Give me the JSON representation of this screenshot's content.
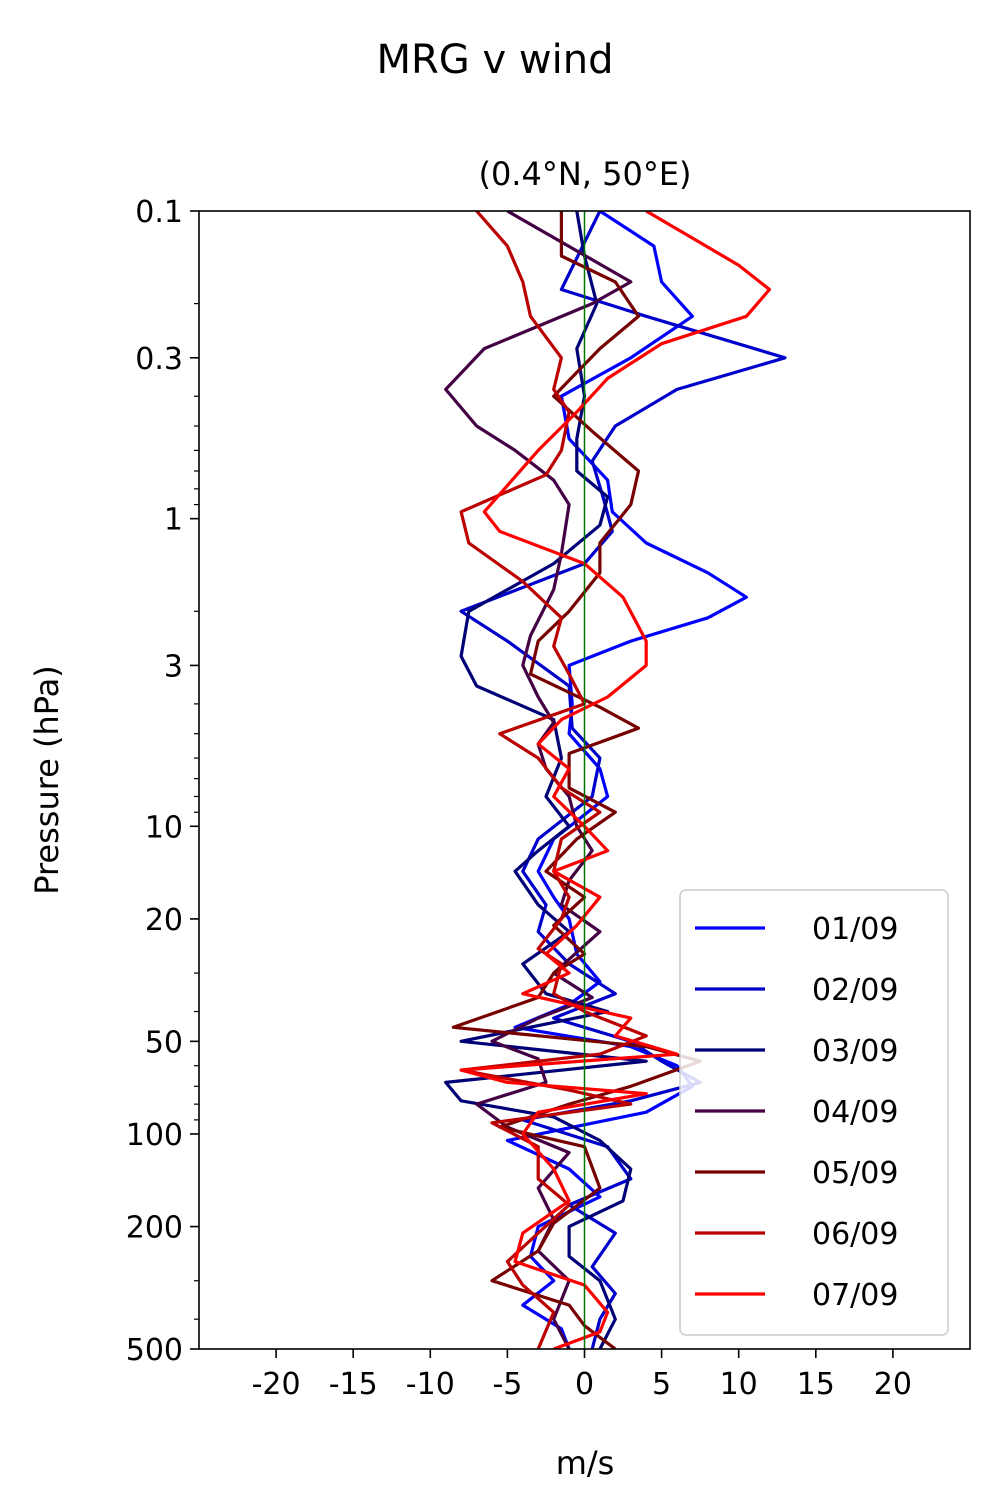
{
  "chart_data": {
    "type": "line",
    "title": "MRG v wind",
    "subtitle": "(0.4°N, 50°E)",
    "xlabel": "m/s",
    "ylabel": "Pressure (hPa)",
    "xlim": [
      -25,
      25
    ],
    "ylim": [
      500,
      0.1
    ],
    "y_scale": "log",
    "y_inverted": true,
    "x_ticks": [
      -20,
      -15,
      -10,
      -5,
      0,
      5,
      10,
      15,
      20
    ],
    "x_tick_labels": [
      "-20",
      "-15",
      "-10",
      "-5",
      "0",
      "5",
      "10",
      "15",
      "20"
    ],
    "y_ticks": [
      0.1,
      0.3,
      1,
      3,
      10,
      20,
      50,
      100,
      200,
      500
    ],
    "y_tick_labels": [
      "0.1",
      "0.3",
      "1",
      "3",
      "10",
      "20",
      "50",
      "100",
      "200",
      "500"
    ],
    "zero_line": {
      "x": 0,
      "color": "#007700"
    },
    "grid": false,
    "legend_position": "lower-right",
    "series": [
      {
        "name": "01/09",
        "color": "#0000ff",
        "points": [
          [
            1,
            0.1
          ],
          [
            4.5,
            0.13
          ],
          [
            5,
            0.17
          ],
          [
            7,
            0.22
          ],
          [
            3,
            0.3
          ],
          [
            -1.5,
            0.4
          ],
          [
            -1,
            0.55
          ],
          [
            1.5,
            0.75
          ],
          [
            1.8,
            0.95
          ],
          [
            4,
            1.2
          ],
          [
            8,
            1.5
          ],
          [
            10.5,
            1.8
          ],
          [
            8,
            2.1
          ],
          [
            3,
            2.5
          ],
          [
            -1,
            3
          ],
          [
            -0.8,
            4
          ],
          [
            -1,
            5
          ],
          [
            1,
            6.5
          ],
          [
            1.5,
            8
          ],
          [
            -2,
            11
          ],
          [
            -3,
            14
          ],
          [
            -2,
            17
          ],
          [
            -1,
            20
          ],
          [
            -0.5,
            26
          ],
          [
            1,
            32
          ],
          [
            -1,
            38
          ],
          [
            -4.5,
            45
          ],
          [
            3,
            52
          ],
          [
            6,
            60
          ],
          [
            7,
            70
          ],
          [
            4,
            85
          ],
          [
            -5,
            105
          ],
          [
            -1,
            130
          ],
          [
            1,
            160
          ],
          [
            -3,
            200
          ],
          [
            -3.5,
            250
          ],
          [
            -2,
            300
          ],
          [
            -4,
            360
          ],
          [
            -1.5,
            430
          ],
          [
            -1,
            500
          ]
        ]
      },
      {
        "name": "02/09",
        "color": "#0000cc",
        "points": [
          [
            1,
            0.1
          ],
          [
            -1.5,
            0.18
          ],
          [
            4,
            0.22
          ],
          [
            13,
            0.3
          ],
          [
            6,
            0.38
          ],
          [
            2,
            0.5
          ],
          [
            0.5,
            0.65
          ],
          [
            1.2,
            0.85
          ],
          [
            1.8,
            1.1
          ],
          [
            0,
            1.4
          ],
          [
            -8,
            2
          ],
          [
            -5,
            2.5
          ],
          [
            -1,
            3.5
          ],
          [
            -0.8,
            4.8
          ],
          [
            1,
            6
          ],
          [
            0.5,
            8
          ],
          [
            -3,
            11
          ],
          [
            -4,
            14
          ],
          [
            -2.5,
            18
          ],
          [
            -3,
            22
          ],
          [
            -1,
            28
          ],
          [
            2,
            35
          ],
          [
            -2,
            42
          ],
          [
            3,
            50
          ],
          [
            5,
            58
          ],
          [
            7.5,
            68
          ],
          [
            3,
            78
          ],
          [
            -4,
            90
          ],
          [
            1.5,
            110
          ],
          [
            3,
            140
          ],
          [
            -1,
            170
          ],
          [
            2,
            210
          ],
          [
            0.5,
            270
          ],
          [
            2,
            330
          ],
          [
            1,
            400
          ],
          [
            0.5,
            500
          ]
        ]
      },
      {
        "name": "03/09",
        "color": "#000077",
        "points": [
          [
            -0.5,
            0.1
          ],
          [
            0,
            0.14
          ],
          [
            0.8,
            0.2
          ],
          [
            -0.5,
            0.28
          ],
          [
            0,
            0.4
          ],
          [
            -0.5,
            0.55
          ],
          [
            -0.5,
            0.7
          ],
          [
            1.5,
            0.85
          ],
          [
            1,
            1.05
          ],
          [
            -2,
            1.4
          ],
          [
            -7.5,
            2
          ],
          [
            -8,
            2.8
          ],
          [
            -7,
            3.5
          ],
          [
            -2,
            4.5
          ],
          [
            -1.5,
            6
          ],
          [
            -2.5,
            8
          ],
          [
            -1,
            10
          ],
          [
            -3,
            12
          ],
          [
            -4.5,
            14
          ],
          [
            -3,
            18
          ],
          [
            -1,
            22
          ],
          [
            -4,
            28
          ],
          [
            -2.5,
            35
          ],
          [
            1.5,
            40
          ],
          [
            -8,
            50
          ],
          [
            4,
            58
          ],
          [
            -9,
            68
          ],
          [
            -8,
            78
          ],
          [
            -2,
            88
          ],
          [
            1,
            105
          ],
          [
            3,
            130
          ],
          [
            2.5,
            165
          ],
          [
            -1,
            200
          ],
          [
            -1,
            250
          ],
          [
            1,
            300
          ],
          [
            2,
            400
          ],
          [
            1,
            500
          ]
        ]
      },
      {
        "name": "04/09",
        "color": "#440044",
        "points": [
          [
            -5,
            0.1
          ],
          [
            3,
            0.17
          ],
          [
            0.5,
            0.2
          ],
          [
            -6.5,
            0.28
          ],
          [
            -9,
            0.38
          ],
          [
            -7,
            0.5
          ],
          [
            -4.5,
            0.6
          ],
          [
            -2,
            0.75
          ],
          [
            -1,
            0.9
          ],
          [
            -1.5,
            1.3
          ],
          [
            -2,
            1.7
          ],
          [
            -3.5,
            2.4
          ],
          [
            -4,
            3
          ],
          [
            -3,
            3.8
          ],
          [
            -2,
            4.6
          ],
          [
            -3,
            5.4
          ],
          [
            -2.5,
            6.5
          ],
          [
            -1,
            8
          ],
          [
            -0.5,
            10
          ],
          [
            0.5,
            12
          ],
          [
            -1,
            15
          ],
          [
            -1.5,
            18
          ],
          [
            1,
            22
          ],
          [
            -2,
            30
          ],
          [
            0.5,
            36
          ],
          [
            -3,
            42
          ],
          [
            -6,
            50
          ],
          [
            -3,
            57
          ],
          [
            -2.5,
            68
          ],
          [
            -7,
            80
          ],
          [
            -5,
            95
          ],
          [
            -1,
            115
          ],
          [
            -3,
            150
          ],
          [
            -2,
            190
          ],
          [
            -3,
            240
          ],
          [
            -1,
            300
          ],
          [
            -2,
            400
          ],
          [
            -1,
            500
          ]
        ]
      },
      {
        "name": "05/09",
        "color": "#770000",
        "points": [
          [
            -1.5,
            0.1
          ],
          [
            -1.5,
            0.14
          ],
          [
            2,
            0.17
          ],
          [
            3.5,
            0.22
          ],
          [
            1,
            0.28
          ],
          [
            -2,
            0.4
          ],
          [
            0.5,
            0.52
          ],
          [
            3.5,
            0.7
          ],
          [
            3,
            0.9
          ],
          [
            1,
            1.2
          ],
          [
            1,
            1.5
          ],
          [
            -1,
            2
          ],
          [
            -3,
            2.5
          ],
          [
            -3.5,
            3.2
          ],
          [
            1,
            4.1
          ],
          [
            3.5,
            4.8
          ],
          [
            -1,
            5.8
          ],
          [
            -1,
            7.5
          ],
          [
            2,
            9
          ],
          [
            -0.5,
            11
          ],
          [
            -2.5,
            14
          ],
          [
            0,
            17
          ],
          [
            -2,
            21
          ],
          [
            0,
            26
          ],
          [
            -2,
            30
          ],
          [
            -3,
            36
          ],
          [
            -8.5,
            45
          ],
          [
            4,
            52
          ],
          [
            7.5,
            58
          ],
          [
            3,
            70
          ],
          [
            -1,
            80
          ],
          [
            -5.5,
            95
          ],
          [
            0,
            110
          ],
          [
            1,
            150
          ],
          [
            -2,
            195
          ],
          [
            -3,
            240
          ],
          [
            -6,
            300
          ],
          [
            -1,
            360
          ],
          [
            0,
            420
          ],
          [
            2,
            500
          ]
        ]
      },
      {
        "name": "06/09",
        "color": "#bb0000",
        "points": [
          [
            -7,
            0.1
          ],
          [
            -5,
            0.13
          ],
          [
            -4,
            0.17
          ],
          [
            -3.5,
            0.22
          ],
          [
            -1.5,
            0.3
          ],
          [
            -2,
            0.38
          ],
          [
            -1,
            0.45
          ],
          [
            -1.5,
            0.6
          ],
          [
            -2.5,
            0.72
          ],
          [
            -8,
            0.95
          ],
          [
            -7.5,
            1.2
          ],
          [
            -4,
            1.6
          ],
          [
            -1.5,
            2.1
          ],
          [
            -2,
            2.6
          ],
          [
            -1,
            3.2
          ],
          [
            0,
            4
          ],
          [
            -5.5,
            5
          ],
          [
            -3,
            6
          ],
          [
            -1.5,
            7.5
          ],
          [
            1,
            9
          ],
          [
            -1.5,
            11
          ],
          [
            -2,
            14
          ],
          [
            -1,
            17
          ],
          [
            -1.5,
            20
          ],
          [
            -3,
            25
          ],
          [
            -1.5,
            28
          ],
          [
            -2,
            35
          ],
          [
            0,
            40
          ],
          [
            4,
            48
          ],
          [
            1,
            55
          ],
          [
            -8,
            62
          ],
          [
            -1,
            72
          ],
          [
            3,
            80
          ],
          [
            -6,
            92
          ],
          [
            -3,
            110
          ],
          [
            -3,
            140
          ],
          [
            -1,
            170
          ],
          [
            -3,
            210
          ],
          [
            -5,
            260
          ],
          [
            -4,
            310
          ],
          [
            -2,
            380
          ],
          [
            -3,
            500
          ]
        ]
      },
      {
        "name": "07/09",
        "color": "#ff0000",
        "points": [
          [
            4,
            0.1
          ],
          [
            10,
            0.15
          ],
          [
            12,
            0.18
          ],
          [
            10.5,
            0.22
          ],
          [
            5,
            0.27
          ],
          [
            1.5,
            0.35
          ],
          [
            -0.5,
            0.45
          ],
          [
            -3,
            0.6
          ],
          [
            -6.5,
            0.95
          ],
          [
            -5.5,
            1.1
          ],
          [
            0,
            1.4
          ],
          [
            2.5,
            1.8
          ],
          [
            4,
            2.5
          ],
          [
            4,
            3
          ],
          [
            1.5,
            3.8
          ],
          [
            -1.5,
            4.5
          ],
          [
            -3,
            5.4
          ],
          [
            -1,
            6.5
          ],
          [
            -2,
            8
          ],
          [
            0,
            10
          ],
          [
            1.5,
            12
          ],
          [
            -2,
            14
          ],
          [
            1,
            17
          ],
          [
            -0.5,
            21
          ],
          [
            -2.5,
            26
          ],
          [
            -1,
            30
          ],
          [
            -4,
            35
          ],
          [
            3,
            42
          ],
          [
            2,
            48
          ],
          [
            6,
            55
          ],
          [
            -8,
            62
          ],
          [
            -5,
            68
          ],
          [
            4,
            74
          ],
          [
            -3,
            85
          ],
          [
            -4,
            100
          ],
          [
            -2,
            130
          ],
          [
            -1,
            165
          ],
          [
            -4,
            210
          ],
          [
            -4.5,
            260
          ],
          [
            0,
            310
          ],
          [
            1.5,
            380
          ],
          [
            1,
            440
          ],
          [
            -2,
            500
          ]
        ]
      }
    ]
  }
}
